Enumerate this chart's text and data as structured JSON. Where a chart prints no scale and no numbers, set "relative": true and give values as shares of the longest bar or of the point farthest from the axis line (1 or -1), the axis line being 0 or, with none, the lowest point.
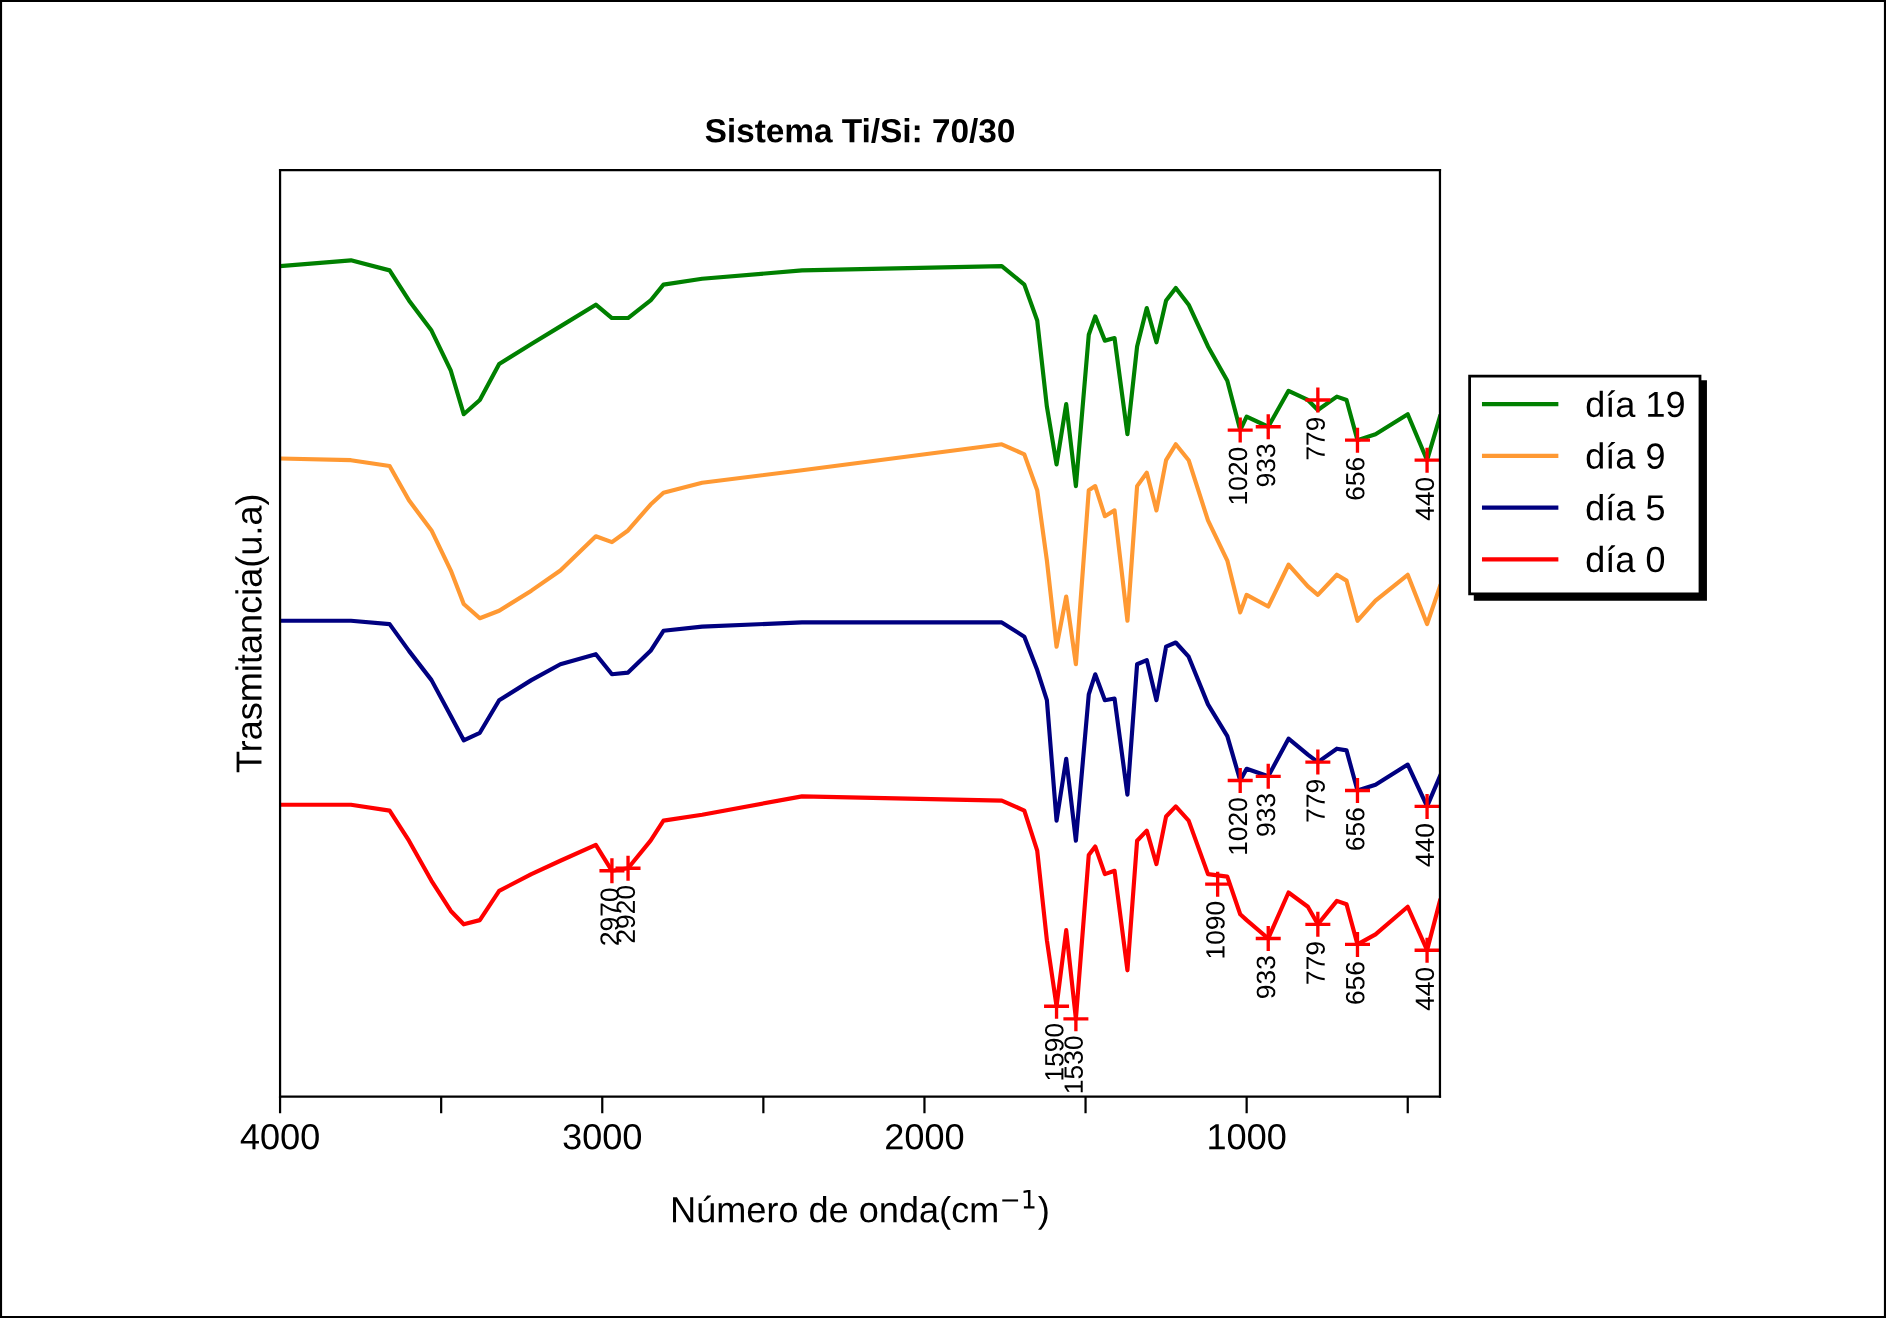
{
  "chart_data": {
    "type": "line",
    "title": "Sistema Ti/Si: 70/30",
    "xlabel": "Número de onda(cm$^{−1}$)",
    "ylabel": "Trasmitancia(u.a)",
    "relative": true,
    "xlim": [
      4000,
      400
    ],
    "xticks": [
      4000,
      {
        "value": 3500,
        "label": null
      },
      3000,
      {
        "value": 2500,
        "label": null
      },
      2000,
      {
        "value": 1500,
        "label": null
      },
      1000,
      {
        "value": 500,
        "label": null
      }
    ],
    "grid": false,
    "legend": "right",
    "marker": "none",
    "line_style": "solid",
    "x": [
      4000,
      3780,
      3660,
      3600,
      3530,
      3470,
      3430,
      3380,
      3320,
      3220,
      3130,
      3020,
      2970,
      2920,
      2850,
      2810,
      2690,
      2380,
      1760,
      1690,
      1650,
      1620,
      1590,
      1560,
      1530,
      1490,
      1470,
      1440,
      1410,
      1370,
      1340,
      1310,
      1280,
      1250,
      1220,
      1180,
      1120,
      1060,
      1020,
      1000,
      933,
      870,
      810,
      779,
      720,
      690,
      656,
      600,
      500,
      440,
      400
    ],
    "series": [
      {
        "name": "día 19",
        "color": "#008000",
        "values": [
          0.993,
          1.0,
          0.988,
          0.952,
          0.916,
          0.868,
          0.816,
          0.833,
          0.876,
          0.9,
          0.921,
          0.947,
          0.931,
          0.931,
          0.952,
          0.971,
          0.978,
          0.988,
          0.993,
          0.971,
          0.928,
          0.825,
          0.756,
          0.828,
          0.73,
          0.911,
          0.933,
          0.904,
          0.907,
          0.792,
          0.897,
          0.943,
          0.902,
          0.952,
          0.967,
          0.947,
          0.897,
          0.856,
          0.797,
          0.813,
          0.801,
          0.844,
          0.833,
          0.821,
          0.837,
          0.833,
          0.785,
          0.792,
          0.816,
          0.761,
          0.813
        ]
      },
      {
        "name": "día 9",
        "color": "#ff9933",
        "values": [
          0.763,
          0.761,
          0.754,
          0.713,
          0.677,
          0.629,
          0.589,
          0.572,
          0.581,
          0.605,
          0.629,
          0.67,
          0.663,
          0.677,
          0.708,
          0.722,
          0.734,
          0.749,
          0.78,
          0.768,
          0.725,
          0.641,
          0.538,
          0.598,
          0.517,
          0.725,
          0.73,
          0.694,
          0.701,
          0.569,
          0.73,
          0.746,
          0.701,
          0.761,
          0.78,
          0.761,
          0.689,
          0.641,
          0.579,
          0.6,
          0.586,
          0.636,
          0.61,
          0.6,
          0.624,
          0.617,
          0.569,
          0.593,
          0.624,
          0.565,
          0.61
        ]
      },
      {
        "name": "día 5",
        "color": "#000080",
        "values": [
          0.569,
          0.569,
          0.565,
          0.533,
          0.498,
          0.455,
          0.426,
          0.435,
          0.474,
          0.498,
          0.517,
          0.529,
          0.505,
          0.507,
          0.533,
          0.557,
          0.562,
          0.567,
          0.567,
          0.55,
          0.51,
          0.474,
          0.33,
          0.404,
          0.306,
          0.481,
          0.505,
          0.474,
          0.476,
          0.361,
          0.517,
          0.522,
          0.474,
          0.538,
          0.543,
          0.526,
          0.469,
          0.431,
          0.378,
          0.392,
          0.383,
          0.428,
          0.409,
          0.4,
          0.416,
          0.414,
          0.366,
          0.373,
          0.397,
          0.347,
          0.383
        ]
      },
      {
        "name": "día 0",
        "color": "#ff0000",
        "values": [
          0.349,
          0.349,
          0.342,
          0.306,
          0.258,
          0.222,
          0.206,
          0.211,
          0.246,
          0.266,
          0.282,
          0.301,
          0.27,
          0.273,
          0.306,
          0.33,
          0.337,
          0.359,
          0.354,
          0.342,
          0.294,
          0.187,
          0.108,
          0.199,
          0.093,
          0.289,
          0.299,
          0.266,
          0.27,
          0.151,
          0.306,
          0.318,
          0.278,
          0.335,
          0.347,
          0.33,
          0.266,
          0.263,
          0.218,
          0.211,
          0.189,
          0.244,
          0.227,
          0.206,
          0.234,
          0.23,
          0.182,
          0.194,
          0.227,
          0.175,
          0.234
        ]
      }
    ],
    "annotations": [
      {
        "text": "1020",
        "x": 1020,
        "y": 0.797
      },
      {
        "text": "933",
        "x": 933,
        "y": 0.801
      },
      {
        "text": "779",
        "x": 779,
        "y": 0.833
      },
      {
        "text": "656",
        "x": 656,
        "y": 0.785
      },
      {
        "text": "440",
        "x": 440,
        "y": 0.761
      },
      {
        "text": "1020",
        "x": 1020,
        "y": 0.378
      },
      {
        "text": "933",
        "x": 933,
        "y": 0.383
      },
      {
        "text": "779",
        "x": 779,
        "y": 0.4
      },
      {
        "text": "656",
        "x": 656,
        "y": 0.366
      },
      {
        "text": "440",
        "x": 440,
        "y": 0.347
      },
      {
        "text": "2970",
        "x": 2970,
        "y": 0.27
      },
      {
        "text": "2920",
        "x": 2920,
        "y": 0.273
      },
      {
        "text": "1590",
        "x": 1590,
        "y": 0.108
      },
      {
        "text": "1530",
        "x": 1530,
        "y": 0.093
      },
      {
        "text": "1090",
        "x": 1090,
        "y": 0.254
      },
      {
        "text": "933",
        "x": 933,
        "y": 0.189
      },
      {
        "text": "779",
        "x": 779,
        "y": 0.206
      },
      {
        "text": "656",
        "x": 656,
        "y": 0.182
      },
      {
        "text": "440",
        "x": 440,
        "y": 0.175
      }
    ]
  }
}
